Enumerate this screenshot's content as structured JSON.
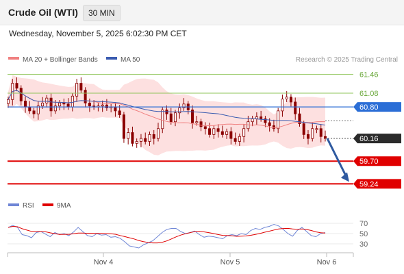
{
  "header": {
    "title": "Crude Oil (WTI)",
    "timeframe": "30 MIN",
    "datetime": "Wednesday, November 5, 2025 6:02:30 PM CET"
  },
  "legend": {
    "ma20_label": "MA 20 + Bollinger Bands",
    "ma50_label": "MA 50",
    "credit": "Research © 2025 Trading Central",
    "rsi_label": "RSI",
    "rsi_ma_label": "9MA"
  },
  "colors": {
    "ma20": "#f08080",
    "ma50": "#3a5bb0",
    "bollinger_fill": "#fde0e0",
    "candle": "#8b0000",
    "level_green": "#8fc45a",
    "resistance_blue": "#2b6ed6",
    "support_red": "#e00000",
    "arrow": "#2f5aa0",
    "rsi": "#6f86d6",
    "rsi_ma": "#e00000"
  },
  "chart_data": [
    {
      "type": "candlestick",
      "x_labels": [
        "Nov 4",
        "Nov 5",
        "Nov 6"
      ],
      "ylim": [
        59.05,
        61.58
      ],
      "price_levels": [
        {
          "label": "61.46",
          "value": 61.46,
          "kind": "green"
        },
        {
          "label": "61.08",
          "value": 61.08,
          "kind": "green"
        },
        {
          "label": "60.80",
          "value": 60.8,
          "kind": "resistance"
        },
        {
          "label": "60.16",
          "value": 60.16,
          "kind": "last"
        },
        {
          "label": "59.70",
          "value": 59.7,
          "kind": "support"
        },
        {
          "label": "59.24",
          "value": 59.24,
          "kind": "support"
        }
      ],
      "closes": [
        60.95,
        61.28,
        61.18,
        60.92,
        60.8,
        60.72,
        60.66,
        60.82,
        60.88,
        60.98,
        60.72,
        60.82,
        60.88,
        60.86,
        60.8,
        61.02,
        61.28,
        61.14,
        60.88,
        60.82,
        60.8,
        60.82,
        60.84,
        60.78,
        60.8,
        60.72,
        60.64,
        60.16,
        60.28,
        60.06,
        60.1,
        60.16,
        60.1,
        60.24,
        60.16,
        60.36,
        60.74,
        60.66,
        60.5,
        60.68,
        60.78,
        60.86,
        60.74,
        60.48,
        60.5,
        60.4,
        60.36,
        60.24,
        60.36,
        60.3,
        60.24,
        60.3,
        60.16,
        60.1,
        60.2,
        60.36,
        60.5,
        60.56,
        60.6,
        60.56,
        60.48,
        60.42,
        60.36,
        60.72,
        60.96,
        61.0,
        60.9,
        60.66,
        60.46,
        60.24,
        60.16,
        60.36,
        60.36,
        60.2,
        60.16
      ]
    },
    {
      "type": "line",
      "name": "RSI",
      "yticks": [
        30,
        50,
        70
      ],
      "ylim": [
        18,
        82
      ],
      "rsi": [
        62,
        66,
        62,
        48,
        46,
        42,
        52,
        54,
        49,
        44,
        52,
        48,
        50,
        46,
        53,
        62,
        54,
        46,
        44,
        50,
        47,
        48,
        43,
        44,
        41,
        34,
        26,
        24,
        22,
        28,
        32,
        36,
        44,
        52,
        58,
        60,
        60,
        54,
        50,
        52,
        55,
        48,
        43,
        45,
        44,
        42,
        40,
        46,
        48,
        46,
        50,
        48,
        56,
        60,
        58,
        62,
        64,
        68,
        65,
        58,
        50,
        45,
        56,
        62,
        54,
        46,
        44,
        50,
        52
      ]
    }
  ]
}
